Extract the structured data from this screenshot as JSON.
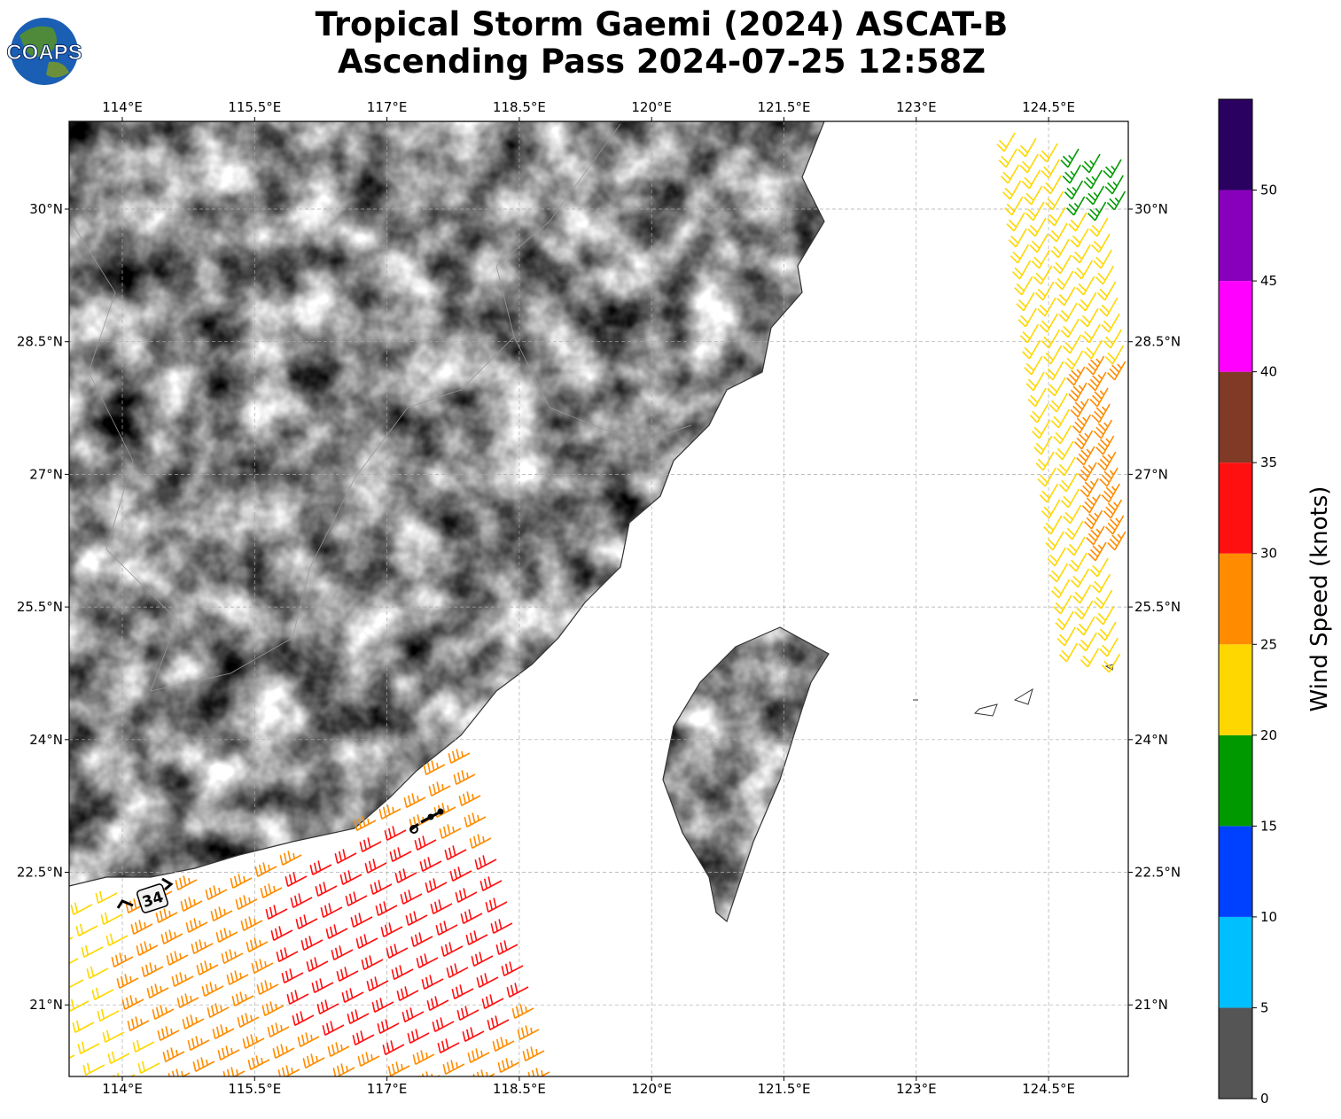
{
  "title": {
    "line1": "Tropical Storm Gaemi (2024) ASCAT-B",
    "line2": "Ascending Pass 2024-07-25 12:58Z"
  },
  "logo": {
    "text": "COAPS"
  },
  "map": {
    "lon_range": [
      113.4,
      125.4
    ],
    "lat_range": [
      20.2,
      31.0
    ],
    "lon_ticks": [
      {
        "v": 114,
        "label": "114°E"
      },
      {
        "v": 115.5,
        "label": "115.5°E"
      },
      {
        "v": 117,
        "label": "117°E"
      },
      {
        "v": 118.5,
        "label": "118.5°E"
      },
      {
        "v": 120,
        "label": "120°E"
      },
      {
        "v": 121.5,
        "label": "121.5°E"
      },
      {
        "v": 123,
        "label": "123°E"
      },
      {
        "v": 124.5,
        "label": "124.5°E"
      }
    ],
    "lat_ticks": [
      {
        "v": 30,
        "label": "30°N"
      },
      {
        "v": 28.5,
        "label": "28.5°N"
      },
      {
        "v": 27,
        "label": "27°N"
      },
      {
        "v": 25.5,
        "label": "25.5°N"
      },
      {
        "v": 24,
        "label": "24°N"
      },
      {
        "v": 22.5,
        "label": "22.5°N"
      },
      {
        "v": 21,
        "label": "21°N"
      }
    ],
    "storm_label": "34"
  },
  "colorbar": {
    "label": "Wind Speed (knots)",
    "range": [
      0,
      55
    ],
    "levels": [
      {
        "from": 0,
        "to": 5,
        "color": "#555555"
      },
      {
        "from": 5,
        "to": 10,
        "color": "#00bfff"
      },
      {
        "from": 10,
        "to": 15,
        "color": "#0040ff"
      },
      {
        "from": 15,
        "to": 20,
        "color": "#009900"
      },
      {
        "from": 20,
        "to": 25,
        "color": "#ffd700"
      },
      {
        "from": 25,
        "to": 30,
        "color": "#ff8c00"
      },
      {
        "from": 30,
        "to": 35,
        "color": "#ff1010"
      },
      {
        "from": 35,
        "to": 40,
        "color": "#803a25"
      },
      {
        "from": 40,
        "to": 45,
        "color": "#ff00ff"
      },
      {
        "from": 45,
        "to": 50,
        "color": "#8800bb"
      },
      {
        "from": 50,
        "to": 55,
        "color": "#2a0060"
      }
    ],
    "ticks": [
      "0",
      "5",
      "10",
      "15",
      "20",
      "25",
      "30",
      "35",
      "40",
      "45",
      "50"
    ]
  }
}
